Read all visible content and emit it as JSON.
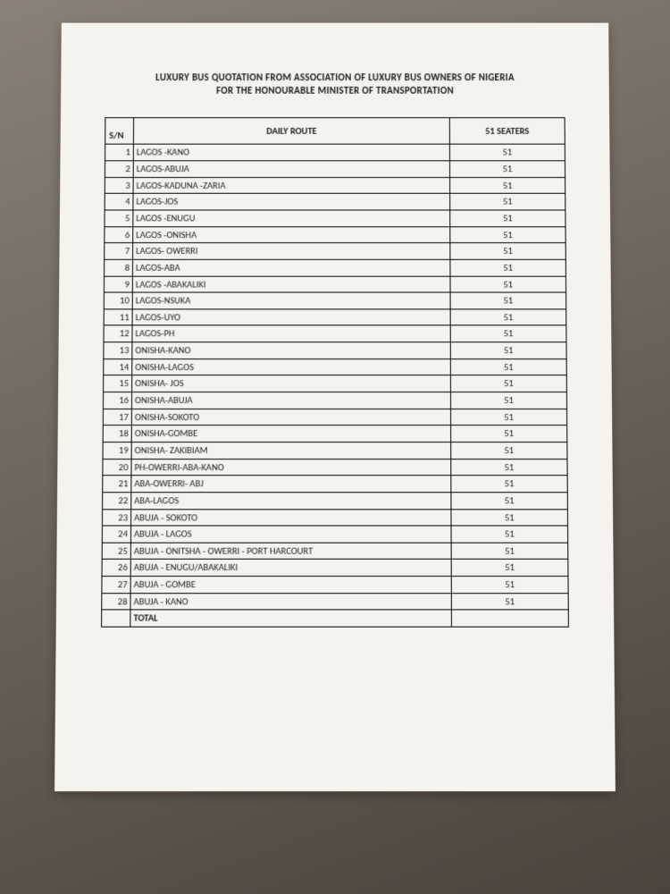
{
  "title_line1": "LUXURY BUS QUOTATION FROM ASSOCIATION OF LUXURY BUS OWNERS OF NIGERIA",
  "title_line2": "FOR THE HONOURABLE MINISTER OF TRANSPORTATION",
  "headers": {
    "sn": "S/N",
    "route": "DAILY ROUTE",
    "seaters": "51 SEATERS"
  },
  "rows": [
    {
      "sn": "1",
      "route": "LAGOS -KANO",
      "seaters": "51"
    },
    {
      "sn": "2",
      "route": "LAGOS-ABUJA",
      "seaters": "51"
    },
    {
      "sn": "3",
      "route": "LAGOS-KADUNA -ZARIA",
      "seaters": "51"
    },
    {
      "sn": "4",
      "route": "LAGOS-JOS",
      "seaters": "51"
    },
    {
      "sn": "5",
      "route": "LAGOS -ENUGU",
      "seaters": "51"
    },
    {
      "sn": "6",
      "route": "LAGOS -ONISHA",
      "seaters": "51"
    },
    {
      "sn": "7",
      "route": "LAGOS- OWERRI",
      "seaters": "51"
    },
    {
      "sn": "8",
      "route": "LAGOS-ABA",
      "seaters": "51"
    },
    {
      "sn": "9",
      "route": "LAGOS -ABAKALIKI",
      "seaters": "51"
    },
    {
      "sn": "10",
      "route": "LAGOS-NSUKA",
      "seaters": "51"
    },
    {
      "sn": "11",
      "route": "LAGOS-UYO",
      "seaters": "51"
    },
    {
      "sn": "12",
      "route": "LAGOS-PH",
      "seaters": "51"
    },
    {
      "sn": "13",
      "route": "ONISHA-KANO",
      "seaters": "51"
    },
    {
      "sn": "14",
      "route": "ONISHA-LAGOS",
      "seaters": "51"
    },
    {
      "sn": "15",
      "route": "ONISHA- JOS",
      "seaters": "51"
    },
    {
      "sn": "16",
      "route": "ONISHA-ABUJA",
      "seaters": "51"
    },
    {
      "sn": "17",
      "route": "ONISHA-SOKOTO",
      "seaters": "51"
    },
    {
      "sn": "18",
      "route": "ONISHA-GOMBE",
      "seaters": "51"
    },
    {
      "sn": "19",
      "route": "ONISHA- ZAKIBIAM",
      "seaters": "51"
    },
    {
      "sn": "20",
      "route": "PH-OWERRI-ABA-KANO",
      "seaters": "51"
    },
    {
      "sn": "21",
      "route": "ABA-OWERRI- ABJ",
      "seaters": "51"
    },
    {
      "sn": "22",
      "route": "ABA-LAGOS",
      "seaters": "51"
    },
    {
      "sn": "23",
      "route": "ABUJA - SOKOTO",
      "seaters": "51"
    },
    {
      "sn": "24",
      "route": "ABUJA - LAGOS",
      "seaters": "51"
    },
    {
      "sn": "25",
      "route": "ABUJA - ONITSHA - OWERRI - PORT HARCOURT",
      "seaters": "51"
    },
    {
      "sn": "26",
      "route": "ABUJA - ENUGU/ABAKALIKI",
      "seaters": "51"
    },
    {
      "sn": "27",
      "route": "ABUJA - GOMBE",
      "seaters": "51"
    },
    {
      "sn": "28",
      "route": "ABUJA - KANO",
      "seaters": "51"
    }
  ],
  "total_label": "TOTAL",
  "total_value": ""
}
